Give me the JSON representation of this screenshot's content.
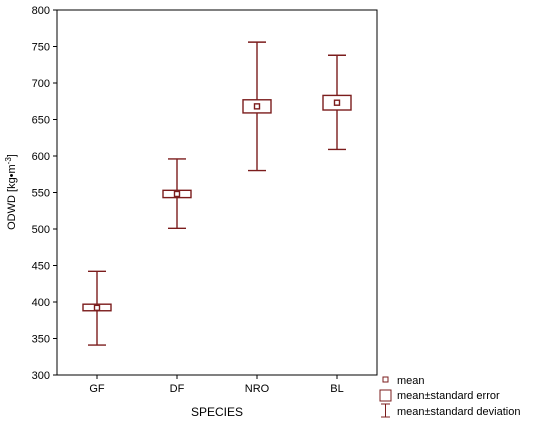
{
  "chart_data": {
    "type": "box",
    "xlabel": "SPECIES",
    "ylabel": "ODWD [kg•m",
    "ylabel_sup": "-3",
    "ylabel_close": "]",
    "ylim": [
      300,
      800
    ],
    "yticks": [
      300,
      350,
      400,
      450,
      500,
      550,
      600,
      650,
      700,
      750,
      800
    ],
    "categories": [
      "GF",
      "DF",
      "NRO",
      "BL"
    ],
    "series": [
      {
        "category": "GF",
        "mean": 392,
        "se_low": 388,
        "se_high": 397,
        "sd_low": 341,
        "sd_high": 442
      },
      {
        "category": "DF",
        "mean": 548,
        "se_low": 543,
        "se_high": 553,
        "sd_low": 501,
        "sd_high": 596
      },
      {
        "category": "NRO",
        "mean": 668,
        "se_low": 659,
        "se_high": 677,
        "sd_low": 580,
        "sd_high": 756
      },
      {
        "category": "BL",
        "mean": 673,
        "se_low": 663,
        "se_high": 683,
        "sd_low": 609,
        "sd_high": 738
      }
    ],
    "legend": {
      "position": "bottom-right",
      "items": [
        "mean",
        "mean±standard error",
        "mean±standard deviation"
      ]
    },
    "grid": false,
    "colors": {
      "mark": "#7b1c1c",
      "axis": "#000000"
    }
  }
}
